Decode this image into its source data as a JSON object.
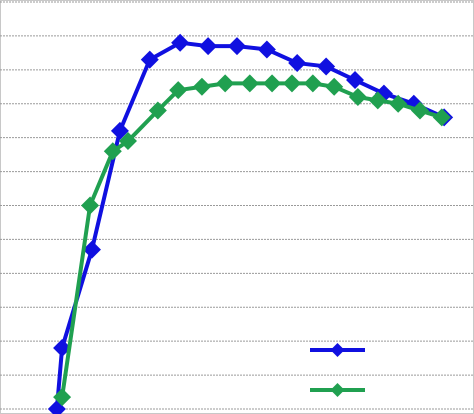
{
  "chart_data": {
    "type": "line",
    "series": [
      {
        "color": "#1010e0",
        "x": [
          12,
          13.1,
          19.4,
          25.3,
          31.6,
          38,
          43.9,
          50,
          56.3,
          62.7,
          68.8,
          74.9,
          81,
          87.3,
          93.7
        ],
        "values": [
          0,
          1.8,
          4.7,
          8.2,
          10.3,
          10.8,
          10.7,
          10.7,
          10.6,
          10.2,
          10.1,
          9.7,
          9.3,
          9.0,
          8.6
        ]
      },
      {
        "color": "#20a050",
        "x": [
          13.1,
          19,
          23.8,
          27,
          33.3,
          37.6,
          42.6,
          47.5,
          52.7,
          57.4,
          61.6,
          66,
          70.5,
          75.5,
          79.7,
          84,
          88.6,
          93.2
        ],
        "values": [
          0.35,
          6.0,
          7.6,
          7.9,
          8.8,
          9.4,
          9.5,
          9.6,
          9.6,
          9.6,
          9.6,
          9.6,
          9.5,
          9.2,
          9.1,
          9.0,
          8.8,
          8.6
        ]
      }
    ],
    "xlim": [
      0,
      100
    ],
    "ylim": [
      0,
      12
    ],
    "yticks": [
      0,
      1,
      2,
      3,
      4,
      5,
      6,
      7,
      8,
      9,
      10,
      11,
      12
    ],
    "grid": true,
    "legend": "lower right"
  }
}
